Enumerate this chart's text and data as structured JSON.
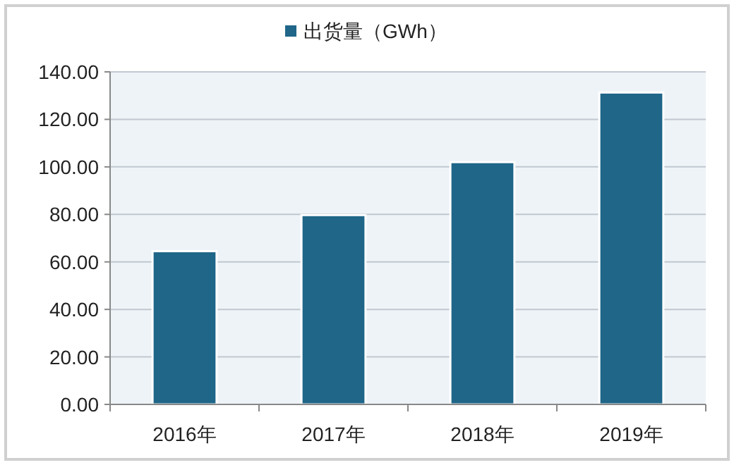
{
  "chart_data": {
    "type": "bar",
    "categories": [
      "2016年",
      "2017年",
      "2018年",
      "2019年"
    ],
    "series": [
      {
        "name": "出货量（GWh）",
        "color": "#1f6689",
        "values": [
          64.5,
          79.7,
          102,
          131.3
        ]
      }
    ],
    "ylim": [
      0,
      140
    ],
    "yticks": [
      {
        "value": 0,
        "label": "0.00"
      },
      {
        "value": 20,
        "label": "20.00"
      },
      {
        "value": 40,
        "label": "40.00"
      },
      {
        "value": 60,
        "label": "60.00"
      },
      {
        "value": 80,
        "label": "80.00"
      },
      {
        "value": 100,
        "label": "100.00"
      },
      {
        "value": 120,
        "label": "120.00"
      },
      {
        "value": 140,
        "label": "140.00"
      }
    ],
    "grid": "y",
    "legend": "top"
  }
}
